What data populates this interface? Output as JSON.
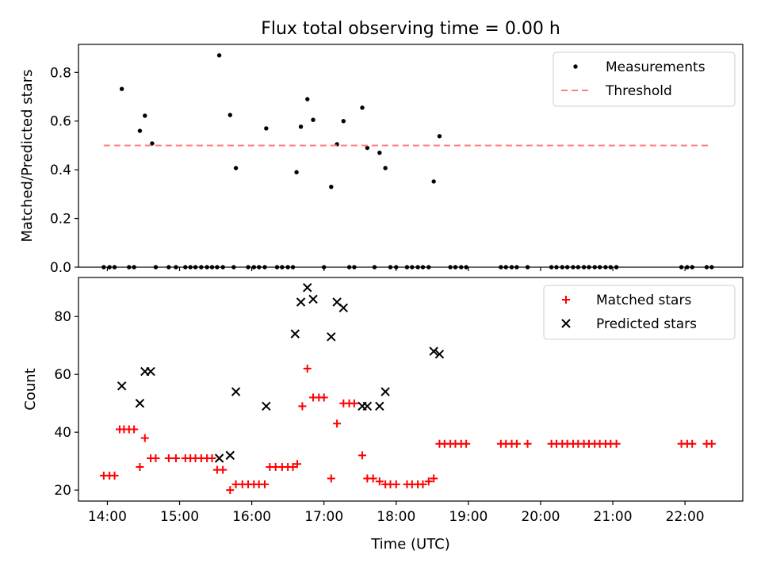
{
  "chart_data": [
    {
      "type": "scatter",
      "title": "Flux total observing time = 0.00 h",
      "xlabel": "",
      "ylabel": "Matched/Predicted stars",
      "xlim": [
        13.6,
        22.8
      ],
      "ylim": [
        0.0,
        0.915
      ],
      "yticks": [
        0.0,
        0.2,
        0.4,
        0.6,
        0.8
      ],
      "ytick_labels": [
        "0.0",
        "0.2",
        "0.4",
        "0.6",
        "0.8"
      ],
      "legend_position": "top-right",
      "series": [
        {
          "name": "Measurements",
          "marker": "dot",
          "color": "#000000",
          "points": [
            [
              13.95,
              0
            ],
            [
              14.03,
              0
            ],
            [
              14.1,
              0
            ],
            [
              14.3,
              0
            ],
            [
              14.37,
              0
            ],
            [
              14.67,
              0
            ],
            [
              14.85,
              0
            ],
            [
              14.95,
              0
            ],
            [
              15.08,
              0
            ],
            [
              15.15,
              0
            ],
            [
              15.22,
              0
            ],
            [
              15.3,
              0
            ],
            [
              15.38,
              0
            ],
            [
              15.45,
              0
            ],
            [
              15.52,
              0
            ],
            [
              15.6,
              0
            ],
            [
              15.75,
              0
            ],
            [
              15.95,
              0
            ],
            [
              16.03,
              0
            ],
            [
              16.1,
              0
            ],
            [
              16.18,
              0
            ],
            [
              16.35,
              0
            ],
            [
              16.42,
              0
            ],
            [
              16.5,
              0
            ],
            [
              16.57,
              0
            ],
            [
              17.0,
              0
            ],
            [
              17.35,
              0
            ],
            [
              17.42,
              0
            ],
            [
              17.7,
              0
            ],
            [
              17.92,
              0
            ],
            [
              18.0,
              0
            ],
            [
              18.15,
              0
            ],
            [
              18.22,
              0
            ],
            [
              18.3,
              0
            ],
            [
              18.37,
              0
            ],
            [
              18.45,
              0
            ],
            [
              18.75,
              0
            ],
            [
              18.82,
              0
            ],
            [
              18.9,
              0
            ],
            [
              18.97,
              0
            ],
            [
              19.45,
              0
            ],
            [
              19.52,
              0
            ],
            [
              19.6,
              0
            ],
            [
              19.67,
              0
            ],
            [
              19.82,
              0
            ],
            [
              20.15,
              0
            ],
            [
              20.22,
              0
            ],
            [
              20.3,
              0
            ],
            [
              20.37,
              0
            ],
            [
              20.45,
              0
            ],
            [
              20.52,
              0
            ],
            [
              20.6,
              0
            ],
            [
              20.67,
              0
            ],
            [
              20.75,
              0
            ],
            [
              20.82,
              0
            ],
            [
              20.9,
              0
            ],
            [
              20.97,
              0
            ],
            [
              21.05,
              0
            ],
            [
              21.95,
              0
            ],
            [
              22.03,
              0
            ],
            [
              22.1,
              0
            ],
            [
              22.3,
              0
            ],
            [
              22.37,
              0
            ],
            [
              14.2,
              0.732
            ],
            [
              14.45,
              0.56
            ],
            [
              14.52,
              0.622
            ],
            [
              14.62,
              0.508
            ],
            [
              15.55,
              0.87
            ],
            [
              15.7,
              0.625
            ],
            [
              15.78,
              0.407
            ],
            [
              16.2,
              0.57
            ],
            [
              16.62,
              0.39
            ],
            [
              16.68,
              0.577
            ],
            [
              16.77,
              0.69
            ],
            [
              16.85,
              0.605
            ],
            [
              17.1,
              0.33
            ],
            [
              17.18,
              0.505
            ],
            [
              17.27,
              0.6
            ],
            [
              17.53,
              0.655
            ],
            [
              17.6,
              0.49
            ],
            [
              17.77,
              0.47
            ],
            [
              17.85,
              0.407
            ],
            [
              18.52,
              0.352
            ],
            [
              18.6,
              0.538
            ]
          ]
        },
        {
          "name": "Threshold",
          "marker": "dashed-line",
          "color": "#ff7f7f",
          "points": [
            [
              13.95,
              0.5
            ],
            [
              22.33,
              0.5
            ]
          ]
        }
      ]
    },
    {
      "type": "scatter",
      "title": "",
      "xlabel": "Time (UTC)",
      "ylabel": "Count",
      "xlim": [
        13.6,
        22.8
      ],
      "ylim": [
        16.2,
        93.5
      ],
      "xticks": [
        14,
        15,
        16,
        17,
        18,
        19,
        20,
        21,
        22
      ],
      "xtick_labels": [
        "14:00",
        "15:00",
        "16:00",
        "17:00",
        "18:00",
        "19:00",
        "20:00",
        "21:00",
        "22:00"
      ],
      "yticks": [
        20,
        40,
        60,
        80
      ],
      "ytick_labels": [
        "20",
        "40",
        "60",
        "80"
      ],
      "legend_position": "top-right",
      "series": [
        {
          "name": "Matched stars",
          "marker": "plus",
          "color": "#ff0000",
          "points": [
            [
              13.95,
              25
            ],
            [
              14.03,
              25
            ],
            [
              14.1,
              25
            ],
            [
              14.17,
              41
            ],
            [
              14.23,
              41
            ],
            [
              14.3,
              41
            ],
            [
              14.37,
              41
            ],
            [
              14.45,
              28
            ],
            [
              14.52,
              38
            ],
            [
              14.6,
              31
            ],
            [
              14.67,
              31
            ],
            [
              14.85,
              31
            ],
            [
              14.95,
              31
            ],
            [
              15.08,
              31
            ],
            [
              15.15,
              31
            ],
            [
              15.22,
              31
            ],
            [
              15.3,
              31
            ],
            [
              15.38,
              31
            ],
            [
              15.45,
              31
            ],
            [
              15.52,
              27
            ],
            [
              15.6,
              27
            ],
            [
              15.7,
              20
            ],
            [
              15.78,
              22
            ],
            [
              15.87,
              22
            ],
            [
              15.95,
              22
            ],
            [
              16.03,
              22
            ],
            [
              16.1,
              22
            ],
            [
              16.18,
              22
            ],
            [
              16.25,
              28
            ],
            [
              16.33,
              28
            ],
            [
              16.42,
              28
            ],
            [
              16.5,
              28
            ],
            [
              16.57,
              28
            ],
            [
              16.63,
              29
            ],
            [
              16.7,
              49
            ],
            [
              16.77,
              62
            ],
            [
              16.85,
              52
            ],
            [
              16.93,
              52
            ],
            [
              17.0,
              52
            ],
            [
              17.1,
              24
            ],
            [
              17.18,
              43
            ],
            [
              17.27,
              50
            ],
            [
              17.35,
              50
            ],
            [
              17.42,
              50
            ],
            [
              17.53,
              32
            ],
            [
              17.6,
              24
            ],
            [
              17.68,
              24
            ],
            [
              17.77,
              23
            ],
            [
              17.85,
              22
            ],
            [
              17.92,
              22
            ],
            [
              18.0,
              22
            ],
            [
              18.15,
              22
            ],
            [
              18.22,
              22
            ],
            [
              18.3,
              22
            ],
            [
              18.37,
              22
            ],
            [
              18.45,
              23
            ],
            [
              18.52,
              24
            ],
            [
              18.6,
              36
            ],
            [
              18.67,
              36
            ],
            [
              18.75,
              36
            ],
            [
              18.82,
              36
            ],
            [
              18.9,
              36
            ],
            [
              18.97,
              36
            ],
            [
              19.45,
              36
            ],
            [
              19.52,
              36
            ],
            [
              19.6,
              36
            ],
            [
              19.67,
              36
            ],
            [
              19.82,
              36
            ],
            [
              20.15,
              36
            ],
            [
              20.22,
              36
            ],
            [
              20.3,
              36
            ],
            [
              20.37,
              36
            ],
            [
              20.45,
              36
            ],
            [
              20.52,
              36
            ],
            [
              20.6,
              36
            ],
            [
              20.67,
              36
            ],
            [
              20.75,
              36
            ],
            [
              20.82,
              36
            ],
            [
              20.9,
              36
            ],
            [
              20.97,
              36
            ],
            [
              21.05,
              36
            ],
            [
              21.95,
              36
            ],
            [
              22.03,
              36
            ],
            [
              22.1,
              36
            ],
            [
              22.3,
              36
            ],
            [
              22.37,
              36
            ]
          ]
        },
        {
          "name": "Predicted stars",
          "marker": "x",
          "color": "#000000",
          "points": [
            [
              14.2,
              56
            ],
            [
              14.45,
              50
            ],
            [
              14.52,
              61
            ],
            [
              14.6,
              61
            ],
            [
              15.55,
              31
            ],
            [
              15.7,
              32
            ],
            [
              15.78,
              54
            ],
            [
              16.2,
              49
            ],
            [
              16.6,
              74
            ],
            [
              16.68,
              85
            ],
            [
              16.77,
              90
            ],
            [
              16.85,
              86
            ],
            [
              17.1,
              73
            ],
            [
              17.18,
              85
            ],
            [
              17.27,
              83
            ],
            [
              17.53,
              49
            ],
            [
              17.6,
              49
            ],
            [
              17.77,
              49
            ],
            [
              17.85,
              54
            ],
            [
              18.52,
              68
            ],
            [
              18.6,
              67
            ]
          ]
        }
      ]
    }
  ]
}
